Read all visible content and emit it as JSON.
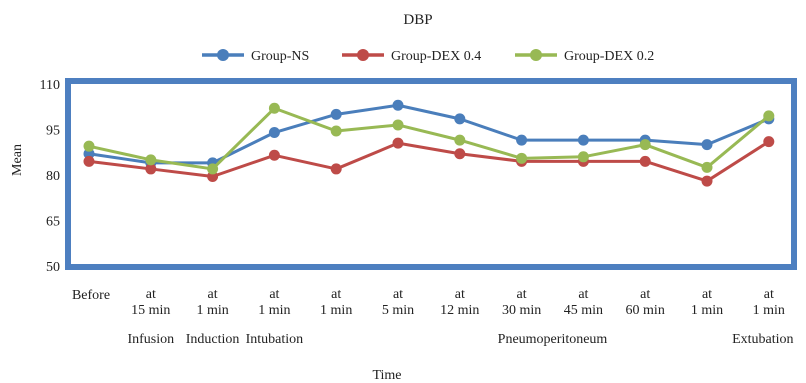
{
  "chart_data": {
    "type": "line",
    "title": "DBP",
    "xlabel": "Time",
    "ylabel": "Mean",
    "ylim": [
      50,
      110
    ],
    "yticks": [
      50,
      65,
      80,
      95,
      110
    ],
    "grid": false,
    "legend_position": "top",
    "categories": [
      [
        "Before"
      ],
      [
        "at",
        "15 min"
      ],
      [
        "at",
        "1 min"
      ],
      [
        "at",
        "1 min"
      ],
      [
        "at",
        "1 min"
      ],
      [
        "at",
        "5 min"
      ],
      [
        "at",
        "12 min"
      ],
      [
        "at",
        "30 min"
      ],
      [
        "at",
        "45 min"
      ],
      [
        "at",
        "60 min"
      ],
      [
        "at",
        "1 min"
      ],
      [
        "at",
        "1 min"
      ]
    ],
    "phase_labels": [
      {
        "text": "Infusion",
        "category_index": 1
      },
      {
        "text": "Induction",
        "category_index": 2
      },
      {
        "text": "Intubation",
        "category_index": 3
      },
      {
        "text": "Pneumoperitoneum",
        "category_index": 7.5
      },
      {
        "text": "Extubation",
        "category_index": 11
      }
    ],
    "series": [
      {
        "name": "Group-NS",
        "color": "#4a7ebb",
        "values": [
          87,
          84,
          84,
          94,
          100,
          103,
          98.5,
          91.5,
          91.5,
          91.5,
          90,
          98.5
        ]
      },
      {
        "name": "Group-DEX 0.4",
        "color": "#be4b48",
        "values": [
          84.5,
          82,
          79.5,
          86.5,
          82,
          90.5,
          87,
          84.5,
          84.5,
          84.5,
          78,
          91
        ]
      },
      {
        "name": "Group-DEX 0.2",
        "color": "#98b954",
        "values": [
          89.5,
          85,
          82,
          102,
          94.5,
          96.5,
          91.5,
          85.5,
          86,
          90,
          82.5,
          99.5
        ]
      }
    ]
  }
}
